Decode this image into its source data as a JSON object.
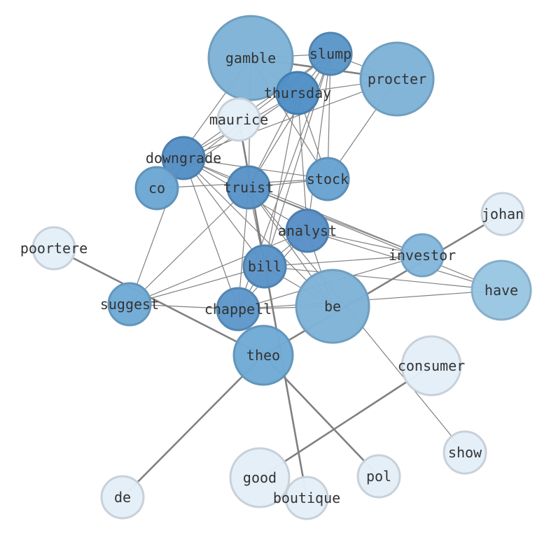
{
  "nodes": [
    {
      "id": "gamble",
      "label": "gamble",
      "color": "#7fb3d8"
    },
    {
      "id": "slump",
      "label": "slump",
      "color": "#5b97c9"
    },
    {
      "id": "procter",
      "label": "procter",
      "color": "#7fb3d8"
    },
    {
      "id": "thursday",
      "label": "thursday",
      "color": "#4f8fc6"
    },
    {
      "id": "maurice",
      "label": "maurice",
      "color": "#e3eef8"
    },
    {
      "id": "downgrade",
      "label": "downgrade",
      "color": "#5590c6"
    },
    {
      "id": "co",
      "label": "co",
      "color": "#6ca7d4"
    },
    {
      "id": "truist",
      "label": "truist",
      "color": "#5a94c8"
    },
    {
      "id": "stock",
      "label": "stock",
      "color": "#69a3d2"
    },
    {
      "id": "analyst",
      "label": "analyst",
      "color": "#5890c6"
    },
    {
      "id": "johan",
      "label": "johan",
      "color": "#e3eef8"
    },
    {
      "id": "poortere",
      "label": "poortere",
      "color": "#e3eef8"
    },
    {
      "id": "investor",
      "label": "investor",
      "color": "#84b8dc"
    },
    {
      "id": "bill",
      "label": "bill",
      "color": "#5a94c8"
    },
    {
      "id": "have",
      "label": "have",
      "color": "#9ac6e3"
    },
    {
      "id": "suggest",
      "label": "suggest",
      "color": "#70aad5"
    },
    {
      "id": "chappell",
      "label": "chappell",
      "color": "#5e98cb"
    },
    {
      "id": "be",
      "label": "be",
      "color": "#7fb3d8"
    },
    {
      "id": "theo",
      "label": "theo",
      "color": "#70aad5"
    },
    {
      "id": "consumer",
      "label": "consumer",
      "color": "#e3eef8"
    },
    {
      "id": "show",
      "label": "show",
      "color": "#e3eef8"
    },
    {
      "id": "good",
      "label": "good",
      "color": "#e3eef8"
    },
    {
      "id": "pol",
      "label": "pol",
      "color": "#e3eef8"
    },
    {
      "id": "de",
      "label": "de",
      "color": "#e3eef8"
    },
    {
      "id": "boutique",
      "label": "boutique",
      "color": "#e3eef8"
    }
  ],
  "edges": [
    [
      "gamble",
      "procter",
      2
    ],
    [
      "poortere",
      "theo",
      2
    ],
    [
      "theo",
      "johan",
      2
    ],
    [
      "theo",
      "de",
      2
    ],
    [
      "theo",
      "pol",
      2
    ],
    [
      "maurice",
      "boutique",
      2
    ],
    [
      "good",
      "consumer",
      2
    ],
    [
      "gamble",
      "slump",
      1
    ],
    [
      "gamble",
      "thursday",
      1
    ],
    [
      "gamble",
      "stock",
      1
    ],
    [
      "gamble",
      "co",
      1
    ],
    [
      "gamble",
      "truist",
      1
    ],
    [
      "slump",
      "procter",
      1
    ],
    [
      "slump",
      "thursday",
      1
    ],
    [
      "slump",
      "downgrade",
      1
    ],
    [
      "slump",
      "co",
      1
    ],
    [
      "slump",
      "truist",
      1
    ],
    [
      "slump",
      "stock",
      1
    ],
    [
      "slump",
      "analyst",
      1
    ],
    [
      "slump",
      "bill",
      1
    ],
    [
      "slump",
      "chappell",
      1
    ],
    [
      "thursday",
      "procter",
      1
    ],
    [
      "thursday",
      "downgrade",
      1
    ],
    [
      "thursday",
      "co",
      1
    ],
    [
      "thursday",
      "truist",
      1
    ],
    [
      "thursday",
      "stock",
      1
    ],
    [
      "thursday",
      "analyst",
      1
    ],
    [
      "thursday",
      "bill",
      1
    ],
    [
      "procter",
      "downgrade",
      1
    ],
    [
      "procter",
      "stock",
      1
    ],
    [
      "downgrade",
      "stock",
      1
    ],
    [
      "downgrade",
      "truist",
      1
    ],
    [
      "downgrade",
      "analyst",
      1
    ],
    [
      "downgrade",
      "bill",
      1
    ],
    [
      "downgrade",
      "chappell",
      1
    ],
    [
      "downgrade",
      "be",
      1
    ],
    [
      "downgrade",
      "investor",
      1
    ],
    [
      "downgrade",
      "suggest",
      1
    ],
    [
      "downgrade",
      "co",
      1
    ],
    [
      "co",
      "stock",
      1
    ],
    [
      "truist",
      "stock",
      1
    ],
    [
      "truist",
      "suggest",
      1
    ],
    [
      "truist",
      "chappell",
      1
    ],
    [
      "truist",
      "bill",
      1
    ],
    [
      "truist",
      "be",
      1
    ],
    [
      "truist",
      "investor",
      1
    ],
    [
      "truist",
      "have",
      1
    ],
    [
      "truist",
      "show",
      1
    ],
    [
      "analyst",
      "investor",
      1
    ],
    [
      "analyst",
      "have",
      1
    ],
    [
      "analyst",
      "bill",
      1
    ],
    [
      "analyst",
      "chappell",
      1
    ],
    [
      "analyst",
      "suggest",
      1
    ],
    [
      "analyst",
      "be",
      1
    ],
    [
      "bill",
      "suggest",
      1
    ],
    [
      "bill",
      "investor",
      1
    ],
    [
      "bill",
      "have",
      1
    ],
    [
      "bill",
      "chappell",
      1
    ],
    [
      "bill",
      "be",
      1
    ],
    [
      "chappell",
      "suggest",
      1
    ],
    [
      "chappell",
      "be",
      1
    ],
    [
      "chappell",
      "investor",
      1
    ],
    [
      "chappell",
      "have",
      1
    ]
  ]
}
